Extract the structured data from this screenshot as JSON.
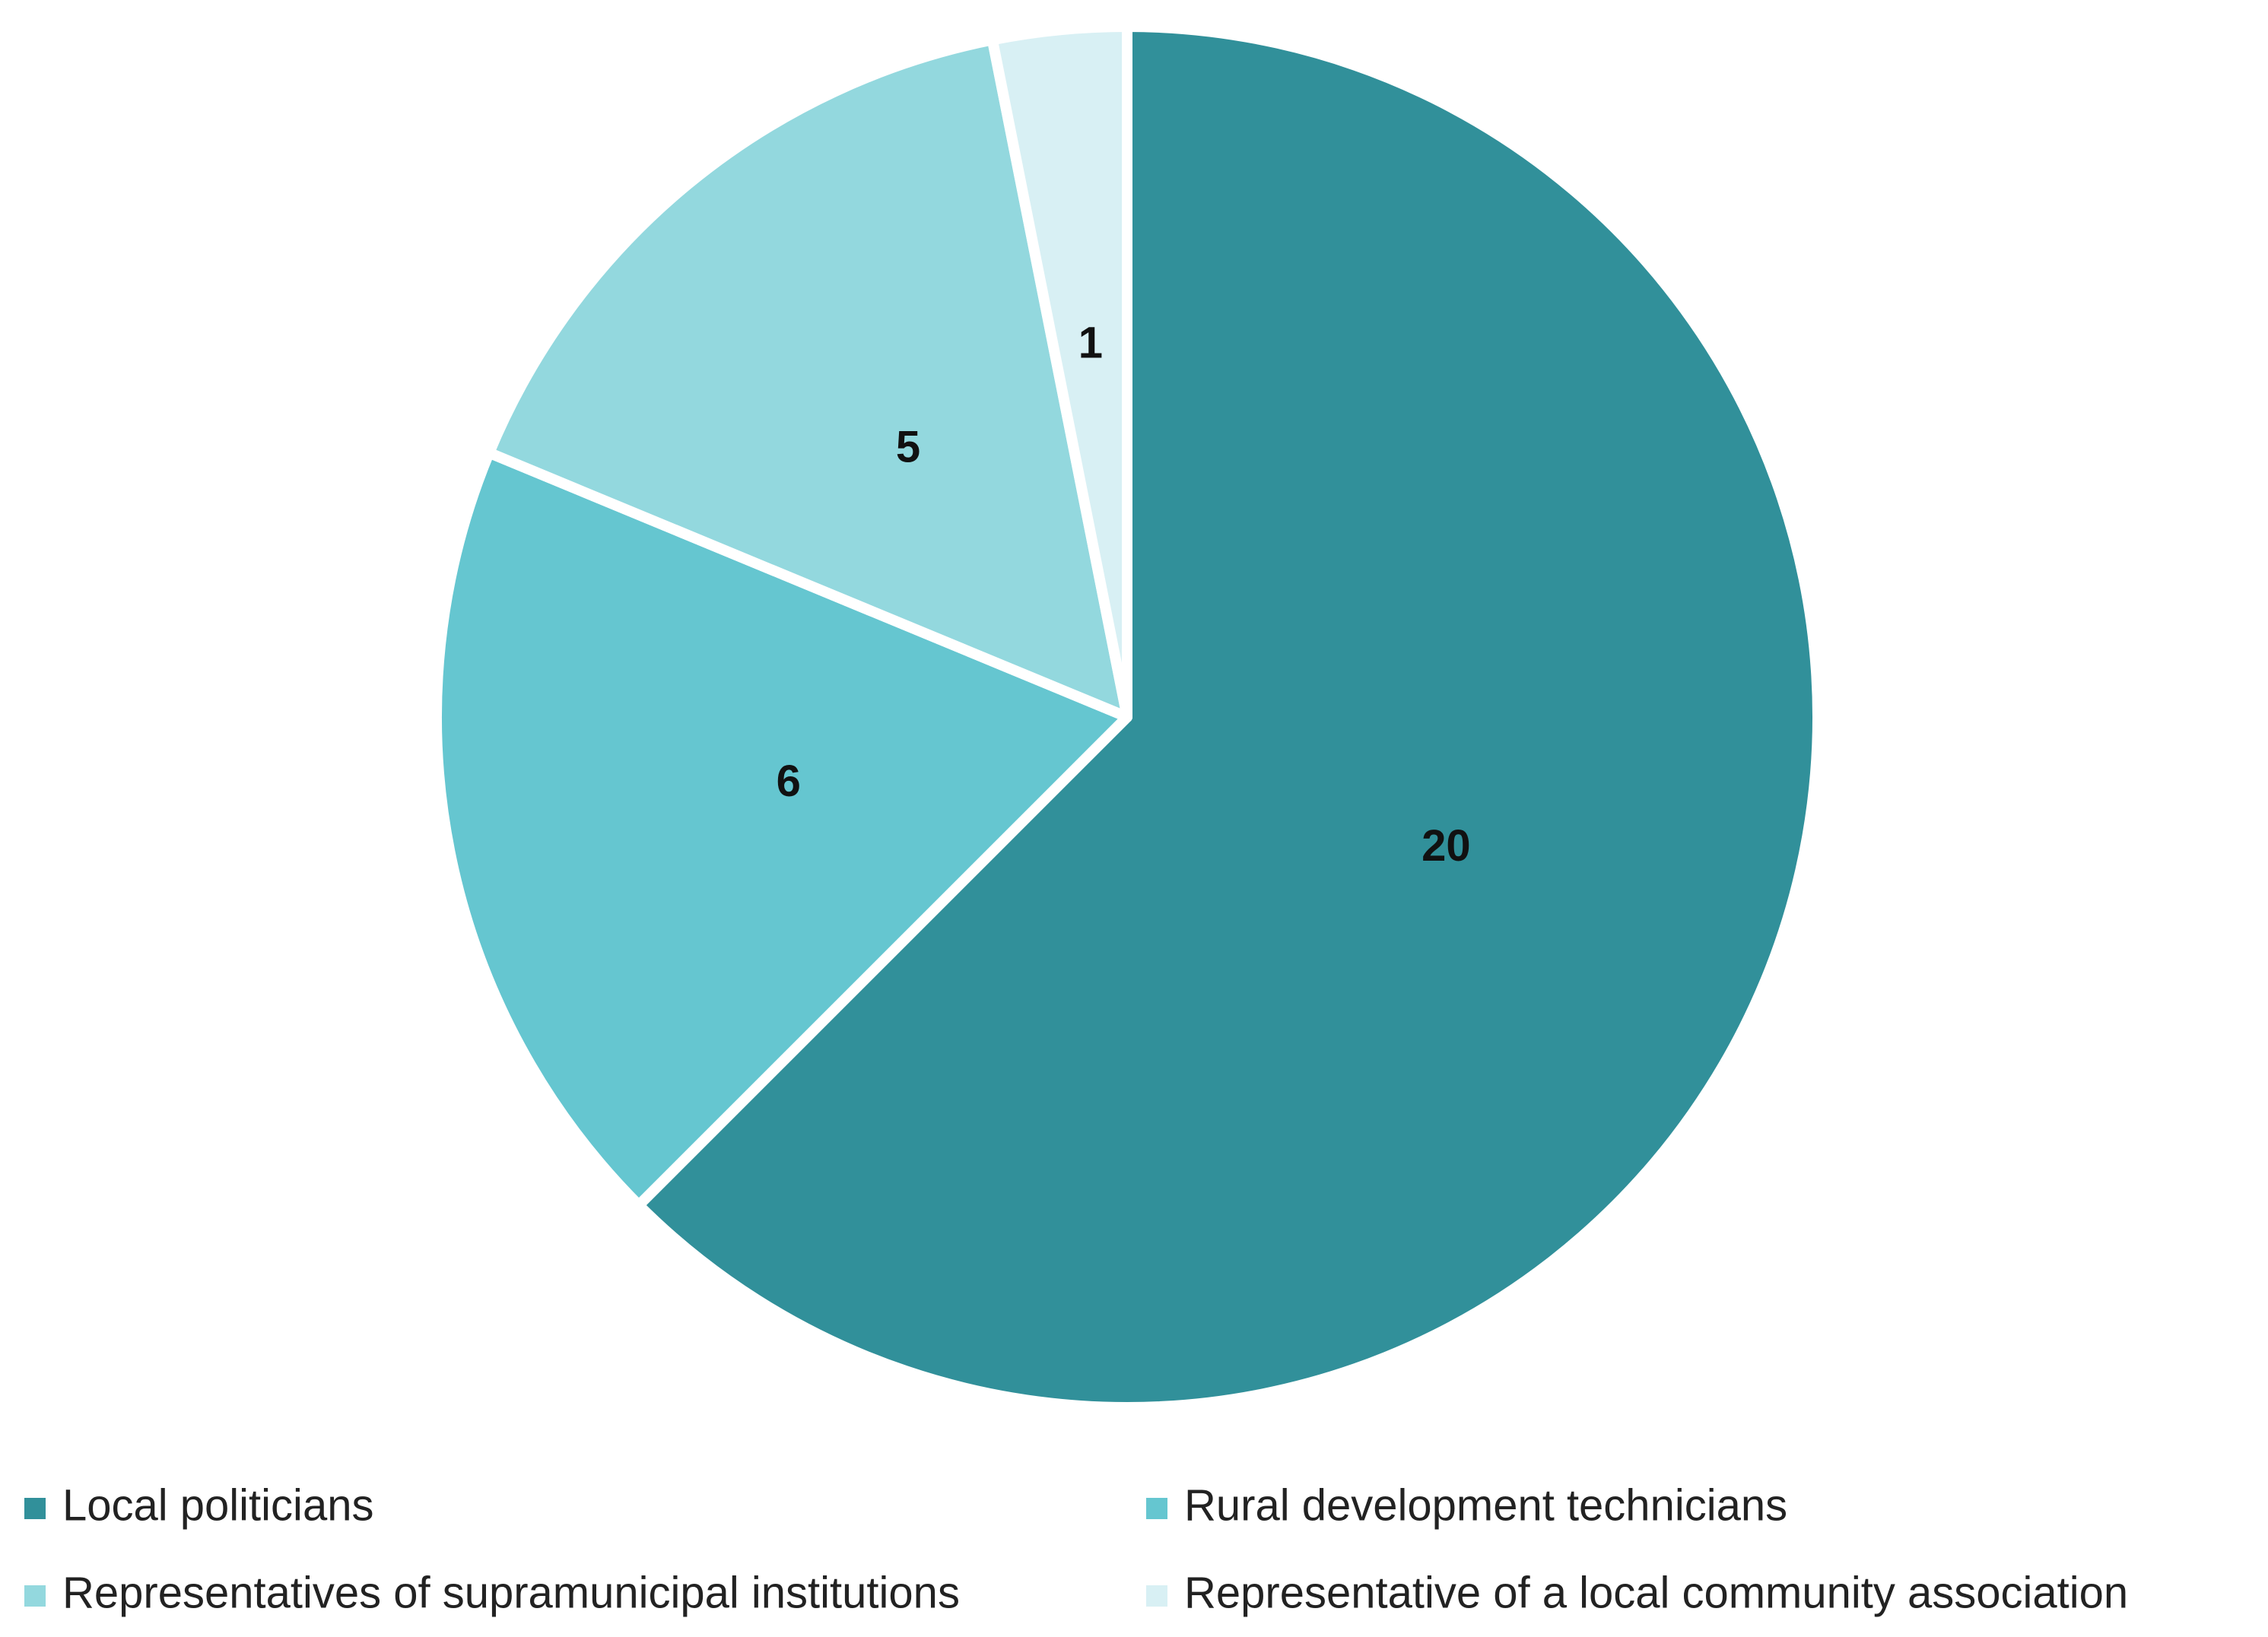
{
  "chart_data": {
    "type": "pie",
    "categories": [
      "Local politicians",
      "Rural development technicians",
      "Representatives of supramunicipal institutions",
      "Representative of a local community association"
    ],
    "values": [
      20,
      6,
      5,
      1
    ],
    "colors": [
      "#31909a",
      "#65c6d0",
      "#93d8de",
      "#d8f0f4"
    ],
    "legend": "bottom"
  }
}
